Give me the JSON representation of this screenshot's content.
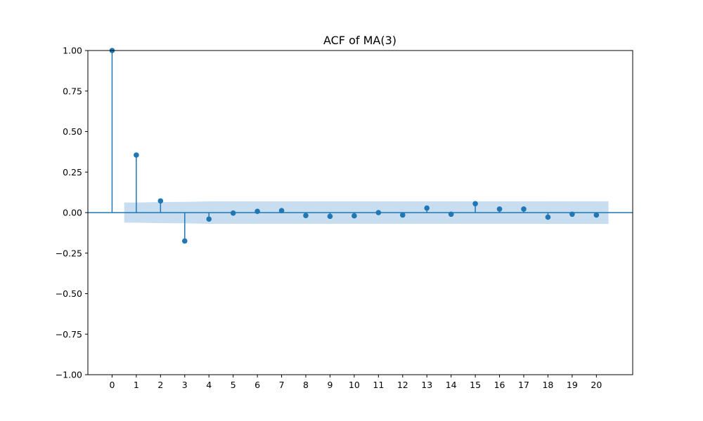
{
  "chart_data": {
    "type": "stem",
    "title": "ACF of MA(3)",
    "xlabel": "",
    "ylabel": "",
    "x": [
      0,
      1,
      2,
      3,
      4,
      5,
      6,
      7,
      8,
      9,
      10,
      11,
      12,
      13,
      14,
      15,
      16,
      17,
      18,
      19,
      20
    ],
    "values": [
      1.0,
      0.355,
      0.072,
      -0.175,
      -0.04,
      -0.003,
      0.008,
      0.012,
      -0.018,
      -0.023,
      -0.02,
      0.0,
      -0.015,
      0.028,
      -0.01,
      0.055,
      0.022,
      0.022,
      -0.028,
      -0.01,
      -0.015
    ],
    "xlim": [
      -1,
      21.5
    ],
    "ylim": [
      -1.0,
      1.0
    ],
    "xticks": [
      0,
      1,
      2,
      3,
      4,
      5,
      6,
      7,
      8,
      9,
      10,
      11,
      12,
      13,
      14,
      15,
      16,
      17,
      18,
      19,
      20
    ],
    "yticks": [
      -1.0,
      -0.75,
      -0.5,
      -0.25,
      0.0,
      0.25,
      0.5,
      0.75,
      1.0
    ],
    "ytick_labels": [
      "−1.00",
      "−0.75",
      "−0.50",
      "−0.25",
      "0.00",
      "0.25",
      "0.50",
      "0.75",
      "1.00"
    ],
    "confidence_band": {
      "x": [
        0.5,
        1,
        2,
        3,
        4,
        5,
        6,
        7,
        8,
        9,
        10,
        11,
        12,
        13,
        14,
        15,
        16,
        17,
        18,
        19,
        20,
        20.5
      ],
      "upper": [
        0.062,
        0.062,
        0.065,
        0.066,
        0.069,
        0.069,
        0.069,
        0.069,
        0.069,
        0.069,
        0.069,
        0.069,
        0.069,
        0.069,
        0.069,
        0.069,
        0.069,
        0.069,
        0.07,
        0.07,
        0.07,
        0.07
      ]
    },
    "grid": false,
    "colors": {
      "series": "#1f77b4",
      "band": "#c6dbef"
    }
  }
}
